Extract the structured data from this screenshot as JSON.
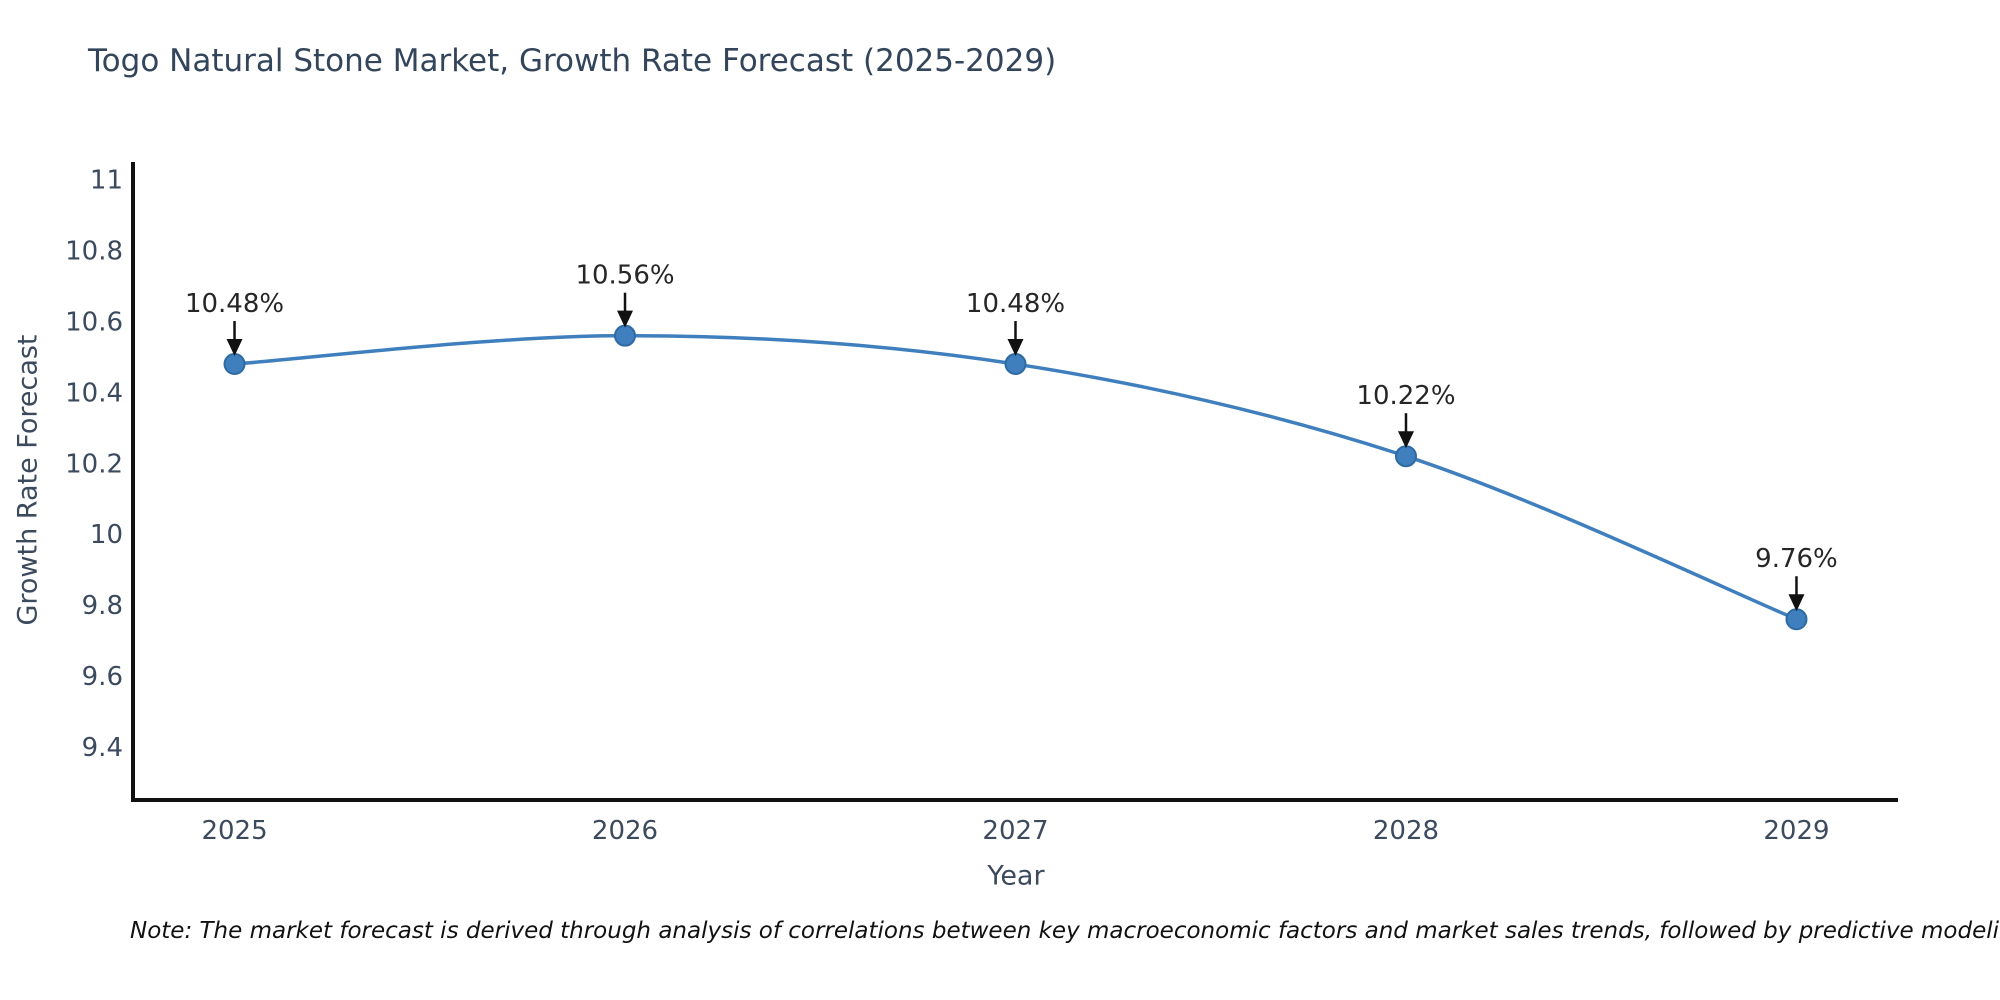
{
  "header": {
    "title": "Togo Natural Stone Market, Growth Rate Forecast (2025-2029)"
  },
  "chart_data": {
    "type": "line",
    "title": "Togo Natural Stone Market, Growth Rate Forecast (2025-2029)",
    "x": [
      2025,
      2026,
      2027,
      2028,
      2029
    ],
    "series": [
      {
        "name": "Growth Rate Forecast",
        "values": [
          10.48,
          10.56,
          10.48,
          10.22,
          9.76
        ]
      }
    ],
    "point_labels": [
      "10.48%",
      "10.56%",
      "10.48%",
      "10.22%",
      "9.76%"
    ],
    "xlabel": "Year",
    "ylabel": "Growth Rate Forecast",
    "xticks": [
      2025,
      2026,
      2027,
      2028,
      2029
    ],
    "yticks": [
      9.4,
      9.6,
      9.8,
      10,
      10.2,
      10.4,
      10.6,
      10.8,
      11
    ],
    "xlim": [
      2024.74,
      2029.26
    ],
    "ylim": [
      9.25,
      11.05
    ],
    "grid": false,
    "legend": "none",
    "line_color": "#3f7fbe",
    "marker_color": "#3f7fbe",
    "marker_edge_color": "#2e6ba3",
    "axis_color": "#111111",
    "tick_label_color": "#3c4a5e",
    "title_color": "#33455b",
    "axis_label_color": "#3c4a5e",
    "annotation_color": "#262626",
    "arrow_color": "#111111"
  },
  "footer": {
    "note": "Note: The market forecast is derived through analysis of correlations between key macroeconomic factors and market sales trends, followed by predictive modeling to project future sal",
    "note_color": "#111111"
  }
}
